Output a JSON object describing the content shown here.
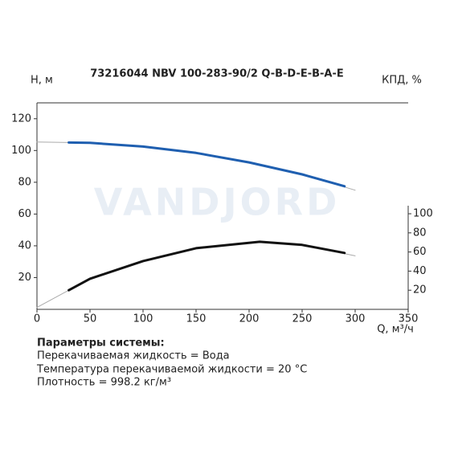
{
  "chart_data": {
    "type": "line",
    "title": "73216044 NBV 100-283-90/2 Q-B-D-E-B-A-E",
    "watermark": "VANDJORD",
    "ylabel": "H, м",
    "y2label": "КПД, %",
    "xlabel": "Q, м³/ч",
    "xlim": [
      0,
      350
    ],
    "ylim": [
      0,
      130
    ],
    "y2lim": [
      0,
      216
    ],
    "xticks": [
      0,
      50,
      100,
      150,
      200,
      250,
      300,
      350
    ],
    "yticks": [
      20,
      40,
      60,
      80,
      100,
      120
    ],
    "y2ticks": [
      20,
      40,
      60,
      80,
      100
    ],
    "series": [
      {
        "color": "#aaaaaa",
        "width": 1,
        "axis": "y",
        "x": [
          0,
          50,
          100,
          150,
          200,
          250,
          300
        ],
        "values": [
          105.3,
          104.8,
          102.5,
          98.5,
          92.5,
          85,
          75
        ]
      },
      {
        "color": "#1f5fb0",
        "width": 3,
        "axis": "y",
        "x": [
          30,
          50,
          100,
          150,
          200,
          250,
          290
        ],
        "values": [
          105,
          104.8,
          102.5,
          98.5,
          92.5,
          85,
          77.5
        ]
      },
      {
        "color": "#aaaaaa",
        "width": 1,
        "axis": "y2",
        "x": [
          0,
          30,
          50,
          100,
          150,
          210,
          250,
          300
        ],
        "values": [
          2,
          20,
          32,
          50.5,
          64,
          70.7,
          67.4,
          56
        ]
      },
      {
        "color": "#111111",
        "width": 3,
        "axis": "y2",
        "x": [
          30,
          50,
          100,
          150,
          210,
          250,
          290
        ],
        "values": [
          20,
          32,
          50.5,
          64,
          70.7,
          67.4,
          59
        ]
      }
    ],
    "info": {
      "heading": "Параметры системы:",
      "lines": [
        "Перекачиваемая жидкость = Вода",
        "Температура перекачиваемой жидкости = 20 °C",
        "Плотность = 998.2 кг/м³"
      ]
    }
  }
}
